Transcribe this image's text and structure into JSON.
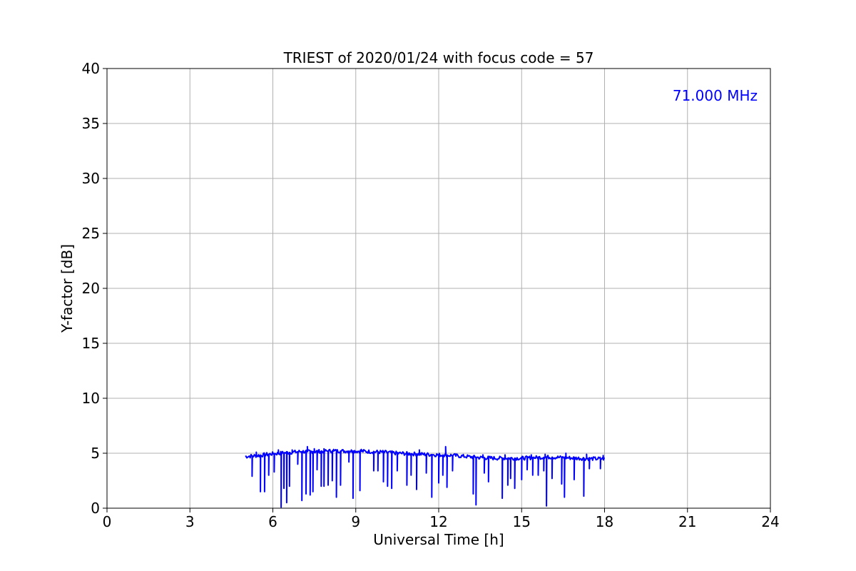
{
  "chart_data": {
    "type": "line",
    "title": "TRIEST of 2020/01/24 with focus code = 57",
    "xlabel": "Universal Time [h]",
    "ylabel": "Y-factor [dB]",
    "xlim": [
      0,
      24
    ],
    "ylim": [
      0,
      40
    ],
    "xticks": [
      0,
      3,
      6,
      9,
      12,
      15,
      18,
      21,
      24
    ],
    "yticks": [
      0,
      5,
      10,
      15,
      20,
      25,
      30,
      35,
      40
    ],
    "grid": true,
    "annotation": {
      "text": "71.000 MHz",
      "color": "#0000ff",
      "position": "top-right"
    },
    "series": [
      {
        "color": "#0000ff",
        "baseline": [
          [
            5.0,
            4.7
          ],
          [
            5.5,
            4.8
          ],
          [
            6.0,
            4.95
          ],
          [
            6.5,
            5.05
          ],
          [
            7.0,
            5.15
          ],
          [
            7.5,
            5.15
          ],
          [
            8.0,
            5.2
          ],
          [
            8.5,
            5.2
          ],
          [
            9.0,
            5.2
          ],
          [
            9.5,
            5.15
          ],
          [
            10.0,
            5.1
          ],
          [
            10.5,
            5.0
          ],
          [
            11.0,
            4.95
          ],
          [
            11.5,
            4.9
          ],
          [
            12.0,
            4.85
          ],
          [
            12.5,
            4.8
          ],
          [
            13.0,
            4.7
          ],
          [
            13.5,
            4.6
          ],
          [
            14.0,
            4.55
          ],
          [
            14.5,
            4.55
          ],
          [
            15.0,
            4.55
          ],
          [
            15.5,
            4.6
          ],
          [
            16.0,
            4.65
          ],
          [
            16.5,
            4.6
          ],
          [
            17.0,
            4.55
          ],
          [
            17.5,
            4.5
          ],
          [
            18.0,
            4.5
          ]
        ],
        "dips": [
          [
            5.25,
            2.9
          ],
          [
            5.55,
            1.5
          ],
          [
            5.7,
            1.5
          ],
          [
            5.85,
            3.0
          ],
          [
            6.05,
            3.3
          ],
          [
            6.3,
            0.1
          ],
          [
            6.4,
            1.8
          ],
          [
            6.5,
            0.5
          ],
          [
            6.6,
            2.0
          ],
          [
            6.9,
            4.0
          ],
          [
            7.05,
            0.7
          ],
          [
            7.2,
            1.3
          ],
          [
            7.35,
            1.2
          ],
          [
            7.45,
            1.5
          ],
          [
            7.6,
            3.5
          ],
          [
            7.75,
            2.0
          ],
          [
            7.85,
            2.0
          ],
          [
            8.0,
            2.1
          ],
          [
            8.15,
            2.5
          ],
          [
            8.3,
            1.0
          ],
          [
            8.45,
            2.1
          ],
          [
            8.75,
            4.2
          ],
          [
            8.9,
            0.9
          ],
          [
            9.15,
            1.6
          ],
          [
            9.65,
            3.4
          ],
          [
            9.8,
            3.4
          ],
          [
            10.0,
            2.4
          ],
          [
            10.15,
            2.0
          ],
          [
            10.3,
            1.8
          ],
          [
            10.5,
            3.4
          ],
          [
            10.85,
            2.1
          ],
          [
            11.0,
            3.0
          ],
          [
            11.2,
            1.7
          ],
          [
            11.55,
            3.2
          ],
          [
            11.75,
            1.0
          ],
          [
            12.0,
            2.3
          ],
          [
            12.15,
            3.0
          ],
          [
            12.3,
            1.9
          ],
          [
            12.5,
            3.4
          ],
          [
            13.25,
            1.3
          ],
          [
            13.35,
            0.3
          ],
          [
            13.65,
            3.2
          ],
          [
            13.8,
            2.4
          ],
          [
            14.3,
            0.9
          ],
          [
            14.5,
            2.1
          ],
          [
            14.6,
            2.7
          ],
          [
            14.75,
            1.8
          ],
          [
            15.0,
            2.6
          ],
          [
            15.2,
            3.5
          ],
          [
            15.4,
            3.0
          ],
          [
            15.6,
            3.0
          ],
          [
            15.8,
            3.4
          ],
          [
            15.9,
            0.2
          ],
          [
            16.1,
            2.7
          ],
          [
            16.45,
            2.2
          ],
          [
            16.55,
            1.0
          ],
          [
            16.9,
            2.6
          ],
          [
            17.25,
            1.1
          ],
          [
            17.45,
            3.6
          ],
          [
            17.85,
            3.6
          ]
        ],
        "spikes": [
          [
            5.4,
            5.1
          ],
          [
            6.2,
            5.3
          ],
          [
            6.7,
            5.3
          ],
          [
            7.25,
            5.6
          ],
          [
            7.5,
            5.4
          ],
          [
            7.85,
            5.4
          ],
          [
            8.2,
            5.35
          ],
          [
            9.2,
            5.35
          ],
          [
            11.3,
            5.3
          ],
          [
            12.25,
            5.6
          ],
          [
            13.6,
            4.85
          ],
          [
            14.4,
            4.85
          ],
          [
            15.35,
            4.85
          ],
          [
            15.85,
            4.9
          ],
          [
            16.6,
            5.0
          ],
          [
            17.35,
            4.9
          ],
          [
            17.95,
            4.8
          ]
        ]
      }
    ]
  }
}
